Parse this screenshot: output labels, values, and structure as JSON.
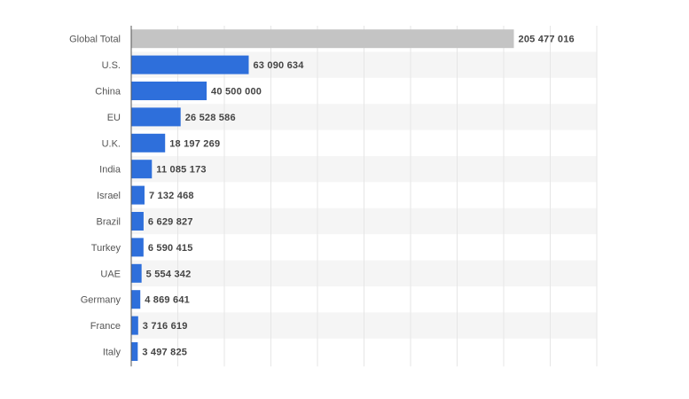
{
  "chart_data": {
    "type": "bar",
    "orientation": "horizontal",
    "title": "",
    "xlabel": "",
    "ylabel": "",
    "categories": [
      "Global Total",
      "U.S.",
      "China",
      "EU",
      "U.K.",
      "India",
      "Israel",
      "Brazil",
      "Turkey",
      "UAE",
      "Germany",
      "France",
      "Italy"
    ],
    "values": [
      205477016,
      63090634,
      40500000,
      26528586,
      18197269,
      11085173,
      7132468,
      6629827,
      6590415,
      5554342,
      4869641,
      3716619,
      3497825
    ],
    "value_labels": [
      "205 477 016",
      "63 090 634",
      "40 500 000",
      "26 528 586",
      "18 197 269",
      "11 085 173",
      "7 132 468",
      "6 629 827",
      "6 590 415",
      "5 554 342",
      "4 869 641",
      "3 716 619",
      "3 497 825"
    ],
    "xlim": [
      0,
      250000000
    ],
    "grid": true,
    "legend": "none",
    "colors": {
      "highlight": "#c4c4c4",
      "bar": "#2e6fdb",
      "grid": "#e6e6e6",
      "band": "#f5f5f5",
      "axis": "#555555"
    }
  }
}
